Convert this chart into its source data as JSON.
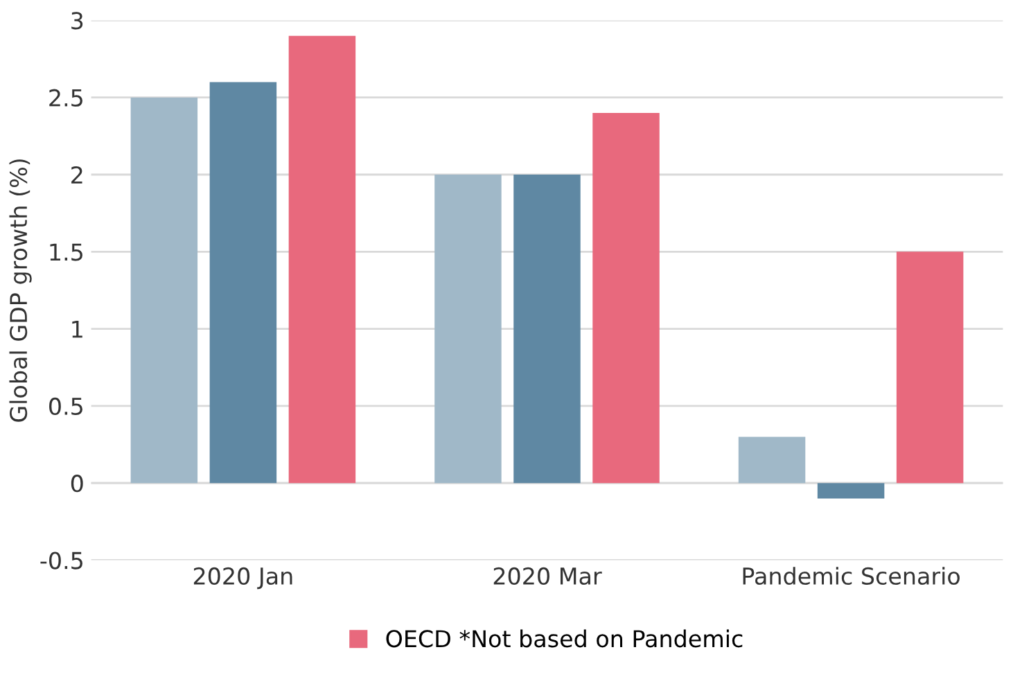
{
  "chart_data": {
    "type": "bar",
    "ylabel": "Global GDP growth (%)",
    "categories": [
      "2020 Jan",
      "2020 Mar",
      "Pandemic Scenario"
    ],
    "series": [
      {
        "color": "#a0b8c8",
        "values": [
          2.5,
          2.0,
          0.3
        ]
      },
      {
        "color": "#5f88a3",
        "values": [
          2.6,
          2.0,
          -0.1
        ]
      },
      {
        "name": "OECD *Not based on Pandemic",
        "color": "#e8697d",
        "values": [
          2.9,
          2.4,
          1.5
        ]
      }
    ],
    "ylim": [
      -0.5,
      3
    ],
    "yticks": [
      -0.5,
      0,
      0.5,
      1,
      1.5,
      2,
      2.5,
      3
    ],
    "grid": "y",
    "legend": "bottom"
  }
}
